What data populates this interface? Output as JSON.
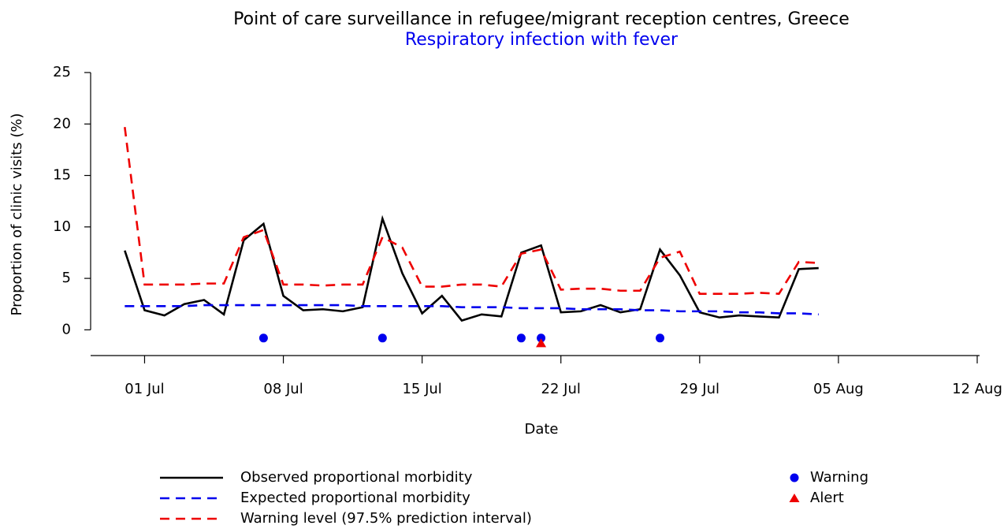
{
  "chart_data": {
    "type": "line",
    "title": "Point of care surveillance in refugee/migrant reception centres, Greece",
    "subtitle": "Respiratory infection with fever",
    "subtitle_color": "#0000ee",
    "x_label": "Date",
    "y_label": "Proportion of clinic visits (%)",
    "x": [
      "30 Jun",
      "01 Jul",
      "02 Jul",
      "03 Jul",
      "04 Jul",
      "05 Jul",
      "06 Jul",
      "07 Jul",
      "08 Jul",
      "09 Jul",
      "10 Jul",
      "11 Jul",
      "12 Jul",
      "13 Jul",
      "14 Jul",
      "15 Jul",
      "16 Jul",
      "17 Jul",
      "18 Jul",
      "19 Jul",
      "20 Jul",
      "21 Jul",
      "22 Jul",
      "23 Jul",
      "24 Jul",
      "25 Jul",
      "26 Jul",
      "27 Jul",
      "28 Jul",
      "29 Jul",
      "30 Jul",
      "31 Jul",
      "01 Aug",
      "02 Aug",
      "03 Aug",
      "04 Aug"
    ],
    "xlim": [
      "28 Jun",
      "12 Aug"
    ],
    "xticks": [
      "01 Jul",
      "08 Jul",
      "15 Jul",
      "22 Jul",
      "29 Jul",
      "05 Aug",
      "12 Aug"
    ],
    "ylim": [
      -2.5,
      25
    ],
    "yticks": [
      0,
      5,
      10,
      15,
      20,
      25
    ],
    "series": [
      {
        "name": "Observed proportional morbidity",
        "color": "#000000",
        "dashed": false,
        "values": [
          7.7,
          1.9,
          1.4,
          2.5,
          2.9,
          1.5,
          8.7,
          10.3,
          3.3,
          1.9,
          2.0,
          1.8,
          2.2,
          10.8,
          5.5,
          1.6,
          3.3,
          0.9,
          1.5,
          1.3,
          7.5,
          8.2,
          1.7,
          1.8,
          2.4,
          1.7,
          2.0,
          7.8,
          5.3,
          1.7,
          1.2,
          1.4,
          1.3,
          1.2,
          5.9,
          6.0
        ]
      },
      {
        "name": "Expected proportional morbidity",
        "color": "#0000ee",
        "dashed": true,
        "values": [
          2.3,
          2.3,
          2.3,
          2.3,
          2.4,
          2.4,
          2.4,
          2.4,
          2.4,
          2.4,
          2.4,
          2.4,
          2.3,
          2.3,
          2.3,
          2.3,
          2.3,
          2.2,
          2.2,
          2.2,
          2.1,
          2.1,
          2.1,
          2.0,
          2.0,
          2.0,
          1.9,
          1.9,
          1.8,
          1.8,
          1.8,
          1.7,
          1.7,
          1.6,
          1.6,
          1.5
        ]
      },
      {
        "name": "Warning level (97.5% prediction interval)",
        "color": "#ee0000",
        "dashed": true,
        "values": [
          19.7,
          4.4,
          4.4,
          4.4,
          4.5,
          4.5,
          9.0,
          9.7,
          4.4,
          4.4,
          4.3,
          4.4,
          4.4,
          9.0,
          8.0,
          4.2,
          4.2,
          4.4,
          4.4,
          4.2,
          7.4,
          7.8,
          3.9,
          4.0,
          4.0,
          3.8,
          3.8,
          7.0,
          7.6,
          3.5,
          3.5,
          3.5,
          3.6,
          3.5,
          6.6,
          6.5
        ]
      }
    ],
    "points": [
      {
        "name": "Warning",
        "color": "#0000ee",
        "marker": "circle",
        "x": [
          "07 Jul",
          "13 Jul",
          "20 Jul",
          "21 Jul",
          "27 Jul"
        ],
        "values": [
          -0.8,
          -0.8,
          -0.8,
          -0.8,
          -0.8
        ]
      },
      {
        "name": "Alert",
        "color": "#ee0000",
        "marker": "triangle",
        "x": [
          "21 Jul"
        ],
        "values": [
          -1.3
        ]
      }
    ]
  }
}
